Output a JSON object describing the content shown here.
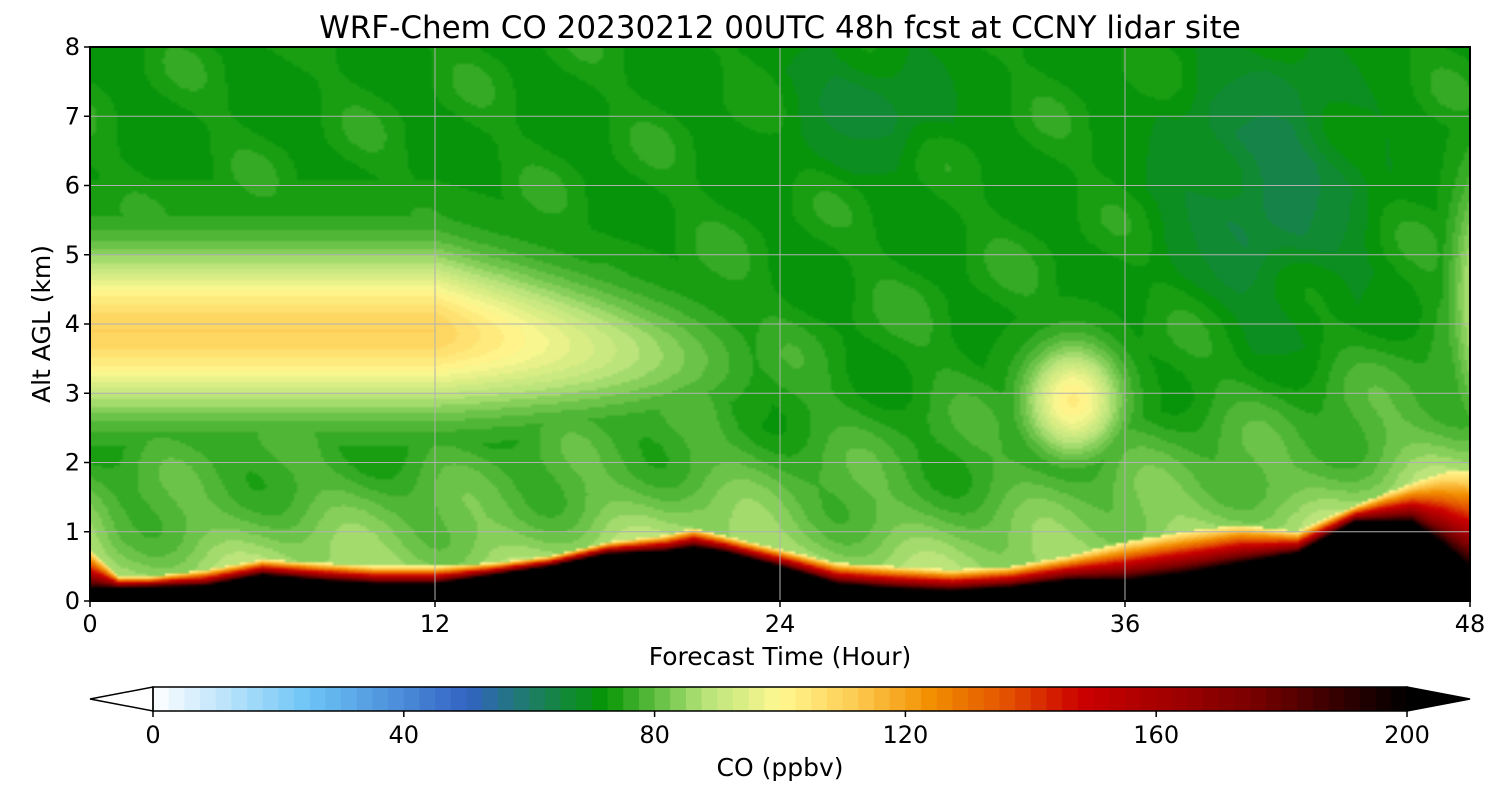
{
  "chart_data": {
    "type": "heatmap",
    "title": "WRF-Chem CO  20230212 00UTC 48h fcst at CCNY lidar site",
    "xlabel": "Forecast Time (Hour)",
    "ylabel": "Alt AGL (km)",
    "xlim": [
      0,
      48
    ],
    "ylim": [
      0,
      8
    ],
    "x_ticks": [
      0,
      12,
      24,
      36,
      48
    ],
    "y_ticks": [
      0,
      1,
      2,
      3,
      4,
      5,
      6,
      7,
      8
    ],
    "grid": true,
    "colorbar": {
      "label": "CO  (ppbv)",
      "min": 0,
      "max": 200,
      "ticks": [
        0,
        40,
        80,
        120,
        160,
        200
      ],
      "extend": "both",
      "stops": [
        {
          "value": 0,
          "color": "#ffffff"
        },
        {
          "value": 25,
          "color": "#6cc4f5"
        },
        {
          "value": 50,
          "color": "#3363c4"
        },
        {
          "value": 60,
          "color": "#1d7c68"
        },
        {
          "value": 72,
          "color": "#069605"
        },
        {
          "value": 88,
          "color": "#b6e37a"
        },
        {
          "value": 100,
          "color": "#fff891"
        },
        {
          "value": 112,
          "color": "#fdcb52"
        },
        {
          "value": 124,
          "color": "#f28f00"
        },
        {
          "value": 136,
          "color": "#e35300"
        },
        {
          "value": 148,
          "color": "#cc0000"
        },
        {
          "value": 175,
          "color": "#7a0000"
        },
        {
          "value": 200,
          "color": "#000000"
        }
      ]
    },
    "fields": {
      "surface_plume_top_km": [
        [
          0,
          0.75
        ],
        [
          1,
          0.35
        ],
        [
          2,
          0.35
        ],
        [
          4,
          0.45
        ],
        [
          6,
          0.6
        ],
        [
          8,
          0.55
        ],
        [
          10,
          0.5
        ],
        [
          12,
          0.5
        ],
        [
          14,
          0.55
        ],
        [
          16,
          0.65
        ],
        [
          18,
          0.85
        ],
        [
          20,
          0.95
        ],
        [
          21,
          1.05
        ],
        [
          22,
          0.95
        ],
        [
          24,
          0.75
        ],
        [
          26,
          0.55
        ],
        [
          28,
          0.5
        ],
        [
          30,
          0.45
        ],
        [
          32,
          0.5
        ],
        [
          34,
          0.65
        ],
        [
          36,
          0.85
        ],
        [
          38,
          1.0
        ],
        [
          40,
          1.1
        ],
        [
          42,
          1.0
        ],
        [
          43,
          1.2
        ],
        [
          45,
          1.55
        ],
        [
          47,
          1.85
        ],
        [
          48,
          1.9
        ]
      ],
      "black_core_top_km": [
        [
          0,
          0.18
        ],
        [
          4,
          0.22
        ],
        [
          6,
          0.38
        ],
        [
          8,
          0.3
        ],
        [
          10,
          0.25
        ],
        [
          12,
          0.25
        ],
        [
          16,
          0.5
        ],
        [
          18,
          0.68
        ],
        [
          20,
          0.72
        ],
        [
          21,
          0.78
        ],
        [
          22,
          0.72
        ],
        [
          24,
          0.5
        ],
        [
          26,
          0.25
        ],
        [
          28,
          0.18
        ],
        [
          30,
          0.15
        ],
        [
          32,
          0.2
        ],
        [
          34,
          0.3
        ],
        [
          36,
          0.3
        ],
        [
          38,
          0.4
        ],
        [
          40,
          0.55
        ],
        [
          42,
          0.7
        ],
        [
          44,
          1.15
        ],
        [
          46,
          1.15
        ],
        [
          47,
          0.85
        ],
        [
          48,
          0.5
        ]
      ],
      "elevated_plume": {
        "center_x_h": 6,
        "center_y_km": 3.9,
        "peak_ppbv": 110,
        "extends_to_h": 24
      },
      "secondary_plume": {
        "center_x_h": 34.2,
        "center_y_km": 2.9,
        "peak_ppbv": 103
      },
      "upper_background_ppbv": 72,
      "clean_core_ppbv": 63,
      "clean_core_center_x_h": 41,
      "clean_core_center_y_km": 6
    }
  }
}
